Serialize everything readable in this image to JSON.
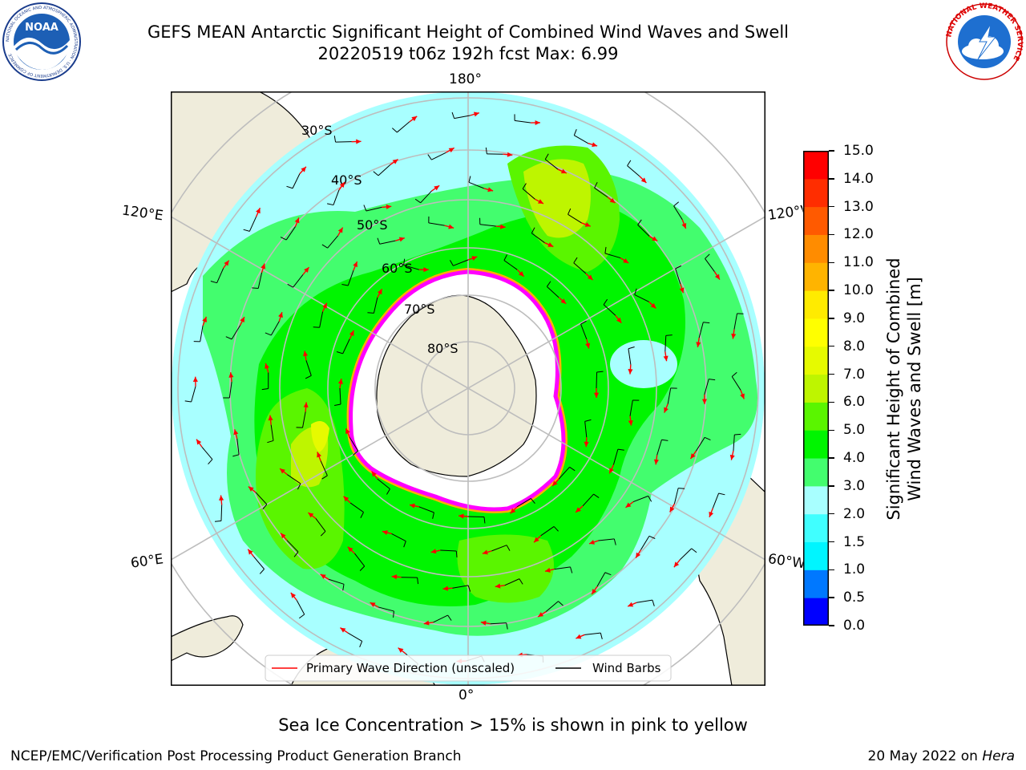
{
  "header": {
    "title_line1": "GEFS MEAN Antarctic Significant Height of Combined Wind Waves and Swell",
    "title_line2": "20220519 t06z 192h fcst   Max: 6.99"
  },
  "logos": {
    "left": {
      "name": "NOAA",
      "text": "NOAA",
      "ring_text": "NATIONAL OCEANIC AND ATMOSPHERIC ADMINISTRATION · U.S. DEPARTMENT OF COMMERCE"
    },
    "right": {
      "name": "National Weather Service",
      "ring_text": "NATIONAL WEATHER SERVICE"
    }
  },
  "map": {
    "projection": "south polar stereographic",
    "lat_labels": [
      "30°S",
      "40°S",
      "50°S",
      "60°S",
      "70°S",
      "80°S"
    ],
    "lon_labels": {
      "top": "180°",
      "bottom": "0°",
      "upper_left": "120°E",
      "lower_left": "60°E",
      "upper_right": "120°W",
      "lower_right": "60°W"
    },
    "legend": {
      "wave_direction": "Primary Wave Direction (unscaled)",
      "wind_barbs": "Wind Barbs"
    },
    "colors": {
      "land": "#efecdb",
      "ice": "#ffffff",
      "ice_edge": [
        "#ff00ff",
        "#ff88ff",
        "#ffb000"
      ],
      "arrow": "#ff0000",
      "grid": "#bdbdbd"
    }
  },
  "colorbar": {
    "label_line1": "Significant Height of Combined",
    "label_line2": "Wind Waves and Swell [m]",
    "ticks": [
      "0.0",
      "0.5",
      "1.0",
      "1.5",
      "2.0",
      "3.0",
      "4.0",
      "5.0",
      "6.0",
      "7.0",
      "8.0",
      "9.0",
      "10.0",
      "11.0",
      "12.0",
      "13.0",
      "14.0",
      "15.0"
    ],
    "colors": [
      "#0000ff",
      "#0078ff",
      "#00f5ff",
      "#40ffff",
      "#a8ffff",
      "#43fd6e",
      "#00f500",
      "#5af500",
      "#bef500",
      "#e6fa00",
      "#ffff00",
      "#ffeb00",
      "#ffb400",
      "#ff8c00",
      "#ff5a00",
      "#ff2d00",
      "#ff0000"
    ]
  },
  "chart_data": {
    "type": "heatmap",
    "title": "GEFS MEAN Antarctic Significant Height of Combined Wind Waves and Swell",
    "subtitle": "20220519 t06z 192h fcst   Max: 6.99",
    "variable": "Significant Height of Combined Wind Waves and Swell [m]",
    "max": 6.99,
    "colorbar_range": [
      0,
      15
    ],
    "colorbar_levels": [
      0,
      0.5,
      1,
      1.5,
      2,
      3,
      4,
      5,
      6,
      7,
      8,
      9,
      10,
      11,
      12,
      13,
      14,
      15
    ]
  },
  "footer": {
    "ice_note": "Sea Ice Concentration > 15% is shown in pink to yellow",
    "credit": "NCEP/EMC/Verification Post Processing Product Generation Branch",
    "date_prefix": "20 May 2022 on ",
    "date_machine": "Hera"
  }
}
